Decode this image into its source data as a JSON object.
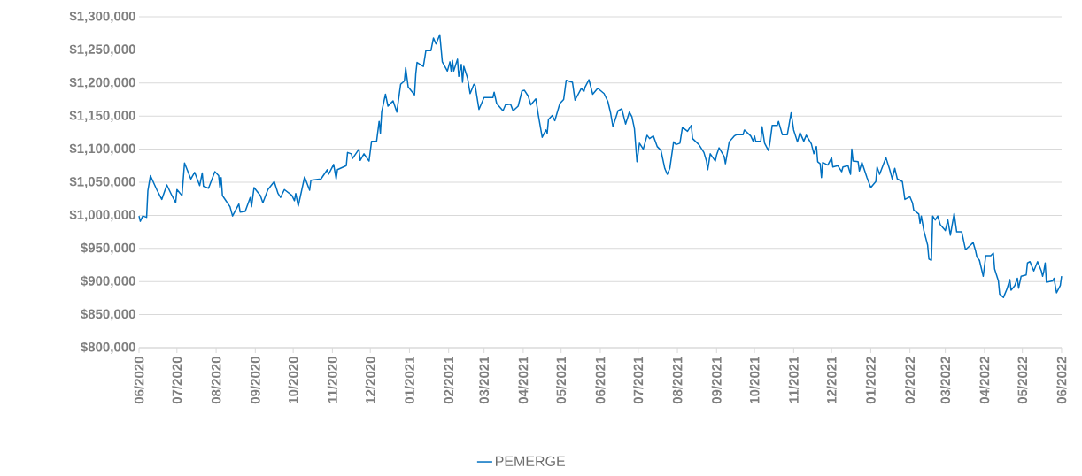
{
  "chart_data": {
    "type": "line",
    "grid": "y",
    "legend": "bottom",
    "line_style": "solid",
    "xlim": [
      "2020-06-01",
      "2022-06-01"
    ],
    "ylim": [
      800000,
      1300000
    ],
    "xticks": [
      {
        "value": "2020-06-01",
        "label": "06/2020"
      },
      {
        "value": "2020-07-01",
        "label": "07/2020"
      },
      {
        "value": "2020-08-01",
        "label": "08/2020"
      },
      {
        "value": "2020-09-01",
        "label": "09/2020"
      },
      {
        "value": "2020-10-01",
        "label": "10/2020"
      },
      {
        "value": "2020-11-01",
        "label": "11/2020"
      },
      {
        "value": "2020-12-01",
        "label": "12/2020"
      },
      {
        "value": "2021-01-01",
        "label": "01/2021"
      },
      {
        "value": "2021-02-01",
        "label": "02/2021"
      },
      {
        "value": "2021-03-01",
        "label": "03/2021"
      },
      {
        "value": "2021-04-01",
        "label": "04/2021"
      },
      {
        "value": "2021-05-01",
        "label": "05/2021"
      },
      {
        "value": "2021-06-01",
        "label": "06/2021"
      },
      {
        "value": "2021-07-01",
        "label": "07/2021"
      },
      {
        "value": "2021-08-01",
        "label": "08/2021"
      },
      {
        "value": "2021-09-01",
        "label": "09/2021"
      },
      {
        "value": "2021-10-01",
        "label": "10/2021"
      },
      {
        "value": "2021-11-01",
        "label": "11/2021"
      },
      {
        "value": "2021-12-01",
        "label": "12/2021"
      },
      {
        "value": "2022-01-01",
        "label": "01/2022"
      },
      {
        "value": "2022-02-01",
        "label": "02/2022"
      },
      {
        "value": "2022-03-01",
        "label": "03/2022"
      },
      {
        "value": "2022-04-01",
        "label": "04/2022"
      },
      {
        "value": "2022-05-01",
        "label": "05/2022"
      },
      {
        "value": "2022-06-01",
        "label": "06/2022"
      }
    ],
    "yticks": [
      {
        "value": 800000,
        "label": "$800,000"
      },
      {
        "value": 850000,
        "label": "$850,000"
      },
      {
        "value": 900000,
        "label": "$900,000"
      },
      {
        "value": 950000,
        "label": "$950,000"
      },
      {
        "value": 1000000,
        "label": "$1,000,000"
      },
      {
        "value": 1050000,
        "label": "$1,050,000"
      },
      {
        "value": 1100000,
        "label": "$1,100,000"
      },
      {
        "value": 1150000,
        "label": "$1,150,000"
      },
      {
        "value": 1200000,
        "label": "$1,200,000"
      },
      {
        "value": 1250000,
        "label": "$1,250,000"
      },
      {
        "value": 1300000,
        "label": "$1,300,000"
      }
    ],
    "x": [
      "2020-06-01",
      "2020-06-02",
      "2020-06-04",
      "2020-06-07",
      "2020-06-08",
      "2020-06-10",
      "2020-06-15",
      "2020-06-19",
      "2020-06-23",
      "2020-06-27",
      "2020-06-30",
      "2020-07-01",
      "2020-07-05",
      "2020-07-07",
      "2020-07-12",
      "2020-07-15",
      "2020-07-19",
      "2020-07-21",
      "2020-07-22",
      "2020-07-26",
      "2020-07-31",
      "2020-08-03",
      "2020-08-04",
      "2020-08-05",
      "2020-08-06",
      "2020-08-12",
      "2020-08-14",
      "2020-08-19",
      "2020-08-20",
      "2020-08-24",
      "2020-08-28",
      "2020-08-29",
      "2020-08-31",
      "2020-09-05",
      "2020-09-07",
      "2020-09-11",
      "2020-09-16",
      "2020-09-19",
      "2020-09-21",
      "2020-09-24",
      "2020-09-30",
      "2020-10-02",
      "2020-10-03",
      "2020-10-05",
      "2020-10-10",
      "2020-10-14",
      "2020-10-15",
      "2020-10-23",
      "2020-10-28",
      "2020-10-29",
      "2020-11-02",
      "2020-11-04",
      "2020-11-05",
      "2020-11-12",
      "2020-11-13",
      "2020-11-16",
      "2020-11-17",
      "2020-11-22",
      "2020-11-23",
      "2020-11-26",
      "2020-11-30",
      "2020-12-02",
      "2020-12-06",
      "2020-12-08",
      "2020-12-09",
      "2020-12-10",
      "2020-12-13",
      "2020-12-15",
      "2020-12-19",
      "2020-12-22",
      "2020-12-25",
      "2020-12-28",
      "2020-12-29",
      "2020-12-31",
      "2021-01-05",
      "2021-01-06",
      "2021-01-07",
      "2021-01-12",
      "2021-01-14",
      "2021-01-18",
      "2021-01-20",
      "2021-01-22",
      "2021-01-25",
      "2021-01-27",
      "2021-01-31",
      "2021-02-02",
      "2021-02-03",
      "2021-02-04",
      "2021-02-05",
      "2021-02-08",
      "2021-02-09",
      "2021-02-11",
      "2021-02-12",
      "2021-02-13",
      "2021-02-16",
      "2021-02-18",
      "2021-02-21",
      "2021-02-22",
      "2021-02-25",
      "2021-03-01",
      "2021-03-08",
      "2021-03-09",
      "2021-03-11",
      "2021-03-16",
      "2021-03-18",
      "2021-03-22",
      "2021-03-24",
      "2021-03-28",
      "2021-03-31",
      "2021-04-02",
      "2021-04-05",
      "2021-04-07",
      "2021-04-11",
      "2021-04-13",
      "2021-04-16",
      "2021-04-19",
      "2021-04-20",
      "2021-04-21",
      "2021-04-24",
      "2021-04-26",
      "2021-04-30",
      "2021-05-03",
      "2021-05-05",
      "2021-05-10",
      "2021-05-12",
      "2021-05-17",
      "2021-05-19",
      "2021-05-20",
      "2021-05-23",
      "2021-05-26",
      "2021-05-30",
      "2021-06-04",
      "2021-06-07",
      "2021-06-09",
      "2021-06-11",
      "2021-06-15",
      "2021-06-18",
      "2021-06-21",
      "2021-06-24",
      "2021-06-26",
      "2021-06-28",
      "2021-06-30",
      "2021-07-02",
      "2021-07-05",
      "2021-07-08",
      "2021-07-10",
      "2021-07-13",
      "2021-07-16",
      "2021-07-19",
      "2021-07-22",
      "2021-07-24",
      "2021-07-26",
      "2021-07-29",
      "2021-07-31",
      "2021-08-03",
      "2021-08-05",
      "2021-08-09",
      "2021-08-12",
      "2021-08-13",
      "2021-08-18",
      "2021-08-22",
      "2021-08-24",
      "2021-08-25",
      "2021-08-27",
      "2021-08-31",
      "2021-09-01",
      "2021-09-03",
      "2021-09-07",
      "2021-09-08",
      "2021-09-11",
      "2021-09-15",
      "2021-09-17",
      "2021-09-22",
      "2021-09-23",
      "2021-09-28",
      "2021-09-30",
      "2021-10-01",
      "2021-10-02",
      "2021-10-06",
      "2021-10-07",
      "2021-10-09",
      "2021-10-12",
      "2021-10-13",
      "2021-10-15",
      "2021-10-19",
      "2021-10-20",
      "2021-10-23",
      "2021-10-27",
      "2021-10-30",
      "2021-11-01",
      "2021-11-04",
      "2021-11-06",
      "2021-11-09",
      "2021-11-11",
      "2021-11-15",
      "2021-11-17",
      "2021-11-19",
      "2021-11-20",
      "2021-11-22",
      "2021-11-23",
      "2021-11-24",
      "2021-11-28",
      "2021-12-01",
      "2021-12-02",
      "2021-12-06",
      "2021-12-09",
      "2021-12-10",
      "2021-12-14",
      "2021-12-16",
      "2021-12-17",
      "2021-12-18",
      "2021-12-22",
      "2021-12-23",
      "2021-12-25",
      "2021-12-29",
      "2022-01-01",
      "2022-01-05",
      "2022-01-06",
      "2022-01-08",
      "2022-01-13",
      "2022-01-16",
      "2022-01-18",
      "2022-01-20",
      "2022-01-22",
      "2022-01-26",
      "2022-01-28",
      "2022-02-01",
      "2022-02-03",
      "2022-02-04",
      "2022-02-08",
      "2022-02-09",
      "2022-02-10",
      "2022-02-12",
      "2022-02-15",
      "2022-02-16",
      "2022-02-18",
      "2022-02-19",
      "2022-02-21",
      "2022-02-23",
      "2022-02-25",
      "2022-03-01",
      "2022-03-03",
      "2022-03-05",
      "2022-03-08",
      "2022-03-10",
      "2022-03-14",
      "2022-03-17",
      "2022-03-21",
      "2022-03-23",
      "2022-03-25",
      "2022-03-26",
      "2022-03-28",
      "2022-03-31",
      "2022-04-02",
      "2022-04-06",
      "2022-04-08",
      "2022-04-09",
      "2022-04-12",
      "2022-04-13",
      "2022-04-16",
      "2022-04-19",
      "2022-04-21",
      "2022-04-22",
      "2022-04-25",
      "2022-04-27",
      "2022-04-28",
      "2022-04-30",
      "2022-05-04",
      "2022-05-05",
      "2022-05-07",
      "2022-05-10",
      "2022-05-13",
      "2022-05-16",
      "2022-05-17",
      "2022-05-18",
      "2022-05-19",
      "2022-05-20",
      "2022-05-25",
      "2022-05-26",
      "2022-05-28",
      "2022-05-31",
      "2022-06-01"
    ],
    "series": [
      {
        "name": "PEMERGE",
        "color": "#0070c0",
        "values": [
          999000,
          991000,
          999000,
          997000,
          1037000,
          1060000,
          1039000,
          1024000,
          1046000,
          1030000,
          1019000,
          1039000,
          1030000,
          1079000,
          1055000,
          1065000,
          1045000,
          1064000,
          1044000,
          1041000,
          1066000,
          1060000,
          1042000,
          1057000,
          1030000,
          1013000,
          999000,
          1017000,
          1005000,
          1006000,
          1027000,
          1013000,
          1042000,
          1030000,
          1019000,
          1039000,
          1051000,
          1033000,
          1027000,
          1039000,
          1030000,
          1022000,
          1033000,
          1014000,
          1058000,
          1038000,
          1053000,
          1055000,
          1069000,
          1062000,
          1077000,
          1055000,
          1069000,
          1075000,
          1095000,
          1093000,
          1086000,
          1100000,
          1083000,
          1093000,
          1082000,
          1112000,
          1112000,
          1142000,
          1124000,
          1156000,
          1183000,
          1165000,
          1173000,
          1156000,
          1198000,
          1203000,
          1223000,
          1194000,
          1182000,
          1214000,
          1231000,
          1225000,
          1249000,
          1249000,
          1268000,
          1259000,
          1273000,
          1232000,
          1218000,
          1232000,
          1218000,
          1234000,
          1218000,
          1236000,
          1210000,
          1228000,
          1201000,
          1225000,
          1207000,
          1184000,
          1198000,
          1196000,
          1160000,
          1178000,
          1178000,
          1186000,
          1169000,
          1158000,
          1167000,
          1168000,
          1158000,
          1165000,
          1188000,
          1189000,
          1180000,
          1167000,
          1176000,
          1151000,
          1118000,
          1129000,
          1124000,
          1145000,
          1151000,
          1143000,
          1169000,
          1175000,
          1204000,
          1201000,
          1174000,
          1192000,
          1187000,
          1194000,
          1205000,
          1183000,
          1192000,
          1184000,
          1172000,
          1156000,
          1134000,
          1158000,
          1161000,
          1138000,
          1156000,
          1149000,
          1131000,
          1081000,
          1109000,
          1100000,
          1121000,
          1116000,
          1120000,
          1104000,
          1098000,
          1071000,
          1062000,
          1071000,
          1111000,
          1107000,
          1109000,
          1133000,
          1127000,
          1136000,
          1116000,
          1107000,
          1095000,
          1082000,
          1069000,
          1093000,
          1082000,
          1091000,
          1102000,
          1089000,
          1078000,
          1111000,
          1120000,
          1122000,
          1122000,
          1129000,
          1120000,
          1112000,
          1120000,
          1112000,
          1112000,
          1134000,
          1109000,
          1098000,
          1107000,
          1136000,
          1136000,
          1142000,
          1122000,
          1122000,
          1155000,
          1129000,
          1111000,
          1125000,
          1112000,
          1121000,
          1108000,
          1093000,
          1104000,
          1081000,
          1078000,
          1057000,
          1080000,
          1076000,
          1087000,
          1073000,
          1075000,
          1066000,
          1073000,
          1075000,
          1062000,
          1100000,
          1082000,
          1081000,
          1067000,
          1080000,
          1057000,
          1042000,
          1051000,
          1073000,
          1062000,
          1087000,
          1069000,
          1055000,
          1071000,
          1055000,
          1051000,
          1024000,
          1028000,
          1019000,
          1008000,
          1002000,
          988000,
          999000,
          977000,
          955000,
          934000,
          932000,
          999000,
          993000,
          999000,
          986000,
          977000,
          993000,
          970000,
          1003000,
          975000,
          975000,
          948000,
          955000,
          959000,
          946000,
          937000,
          932000,
          908000,
          939000,
          939000,
          943000,
          919000,
          901000,
          881000,
          876000,
          890000,
          903000,
          887000,
          894000,
          905000,
          890000,
          908000,
          910000,
          928000,
          930000,
          916000,
          930000,
          916000,
          908000,
          916000,
          928000,
          899000,
          901000,
          905000,
          883000,
          894000,
          908000
        ]
      }
    ]
  }
}
